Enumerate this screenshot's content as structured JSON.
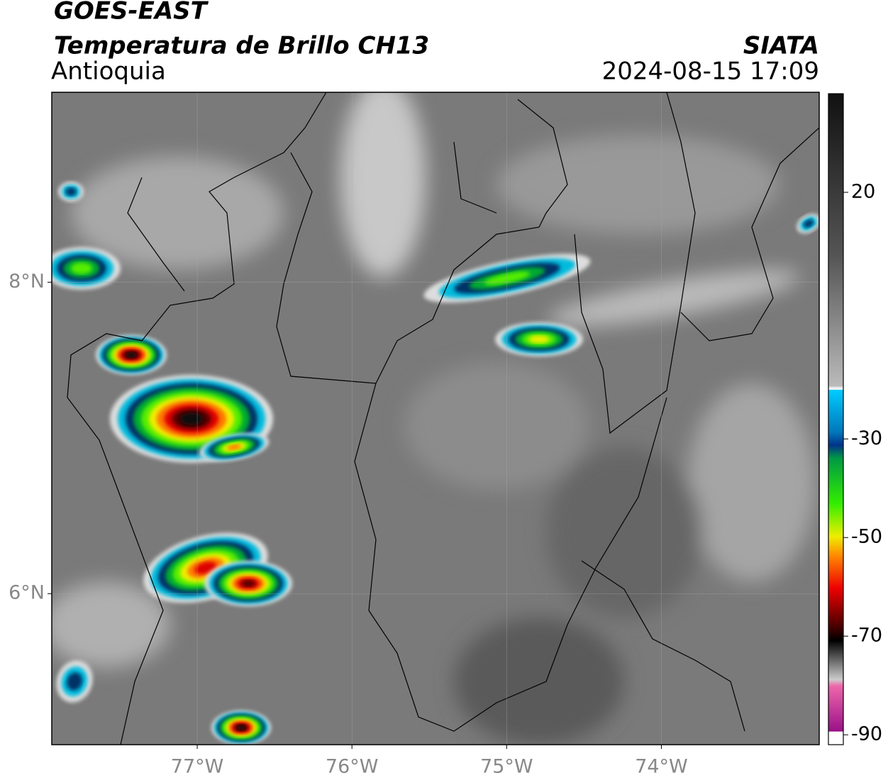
{
  "header": {
    "satellite": "GOES-EAST",
    "product": "Temperatura de Brillo CH13",
    "region": "Antioquia",
    "source": "SIATA",
    "datetime": "2024-08-15 17:09"
  },
  "map": {
    "xlim": [
      -77.94,
      -72.98
    ],
    "ylim": [
      5.03,
      9.22
    ],
    "xticks": [
      {
        "value": -77,
        "label": "77°W"
      },
      {
        "value": -76,
        "label": "76°W"
      },
      {
        "value": -75,
        "label": "75°W"
      },
      {
        "value": -74,
        "label": "74°W"
      }
    ],
    "yticks": [
      {
        "value": 8,
        "label": "8°N"
      },
      {
        "value": 6,
        "label": "6°N"
      }
    ]
  },
  "colorbar": {
    "lim": [
      -92,
      40
    ],
    "ticks": [
      20,
      -30,
      -50,
      -70,
      -90
    ]
  }
}
